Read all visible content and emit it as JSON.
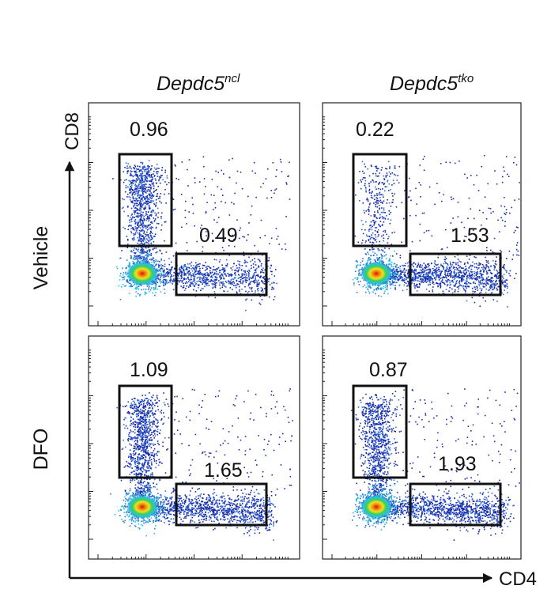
{
  "figure": {
    "column_titles": [
      {
        "base": "Depdc5",
        "sup": "ncl"
      },
      {
        "base": "Depdc5",
        "sup": "tko"
      }
    ],
    "row_labels": [
      "Vehicle",
      "DFO"
    ],
    "y_axis_label": "CD8",
    "x_axis_label": "CD4"
  },
  "chart_data": {
    "type": "scatter",
    "subtype": "flow-cytometry-density-plot",
    "x_axis": {
      "label": "CD4",
      "scale": "log"
    },
    "y_axis": {
      "label": "CD8",
      "scale": "log"
    },
    "columns": [
      "Depdc5ncl",
      "Depdc5tko"
    ],
    "rows": [
      "Vehicle",
      "DFO"
    ],
    "density_colors": [
      "#1a2ca8",
      "#2f6fe0",
      "#28c4d8",
      "#38d05a",
      "#f0e020",
      "#f08a10",
      "#e01010"
    ],
    "panels": [
      {
        "row": "Vehicle",
        "column": "Depdc5ncl",
        "gates": [
          {
            "population": "CD8",
            "percent": "0.96"
          },
          {
            "population": "CD4",
            "percent": "0.49"
          }
        ]
      },
      {
        "row": "Vehicle",
        "column": "Depdc5tko",
        "gates": [
          {
            "population": "CD8",
            "percent": "0.22"
          },
          {
            "population": "CD4",
            "percent": "1.53"
          }
        ]
      },
      {
        "row": "DFO",
        "column": "Depdc5ncl",
        "gates": [
          {
            "population": "CD8",
            "percent": "1.09"
          },
          {
            "population": "CD4",
            "percent": "1.65"
          }
        ]
      },
      {
        "row": "DFO",
        "column": "Depdc5tko",
        "gates": [
          {
            "population": "CD8",
            "percent": "0.87"
          },
          {
            "population": "CD4",
            "percent": "1.93"
          }
        ]
      }
    ]
  }
}
